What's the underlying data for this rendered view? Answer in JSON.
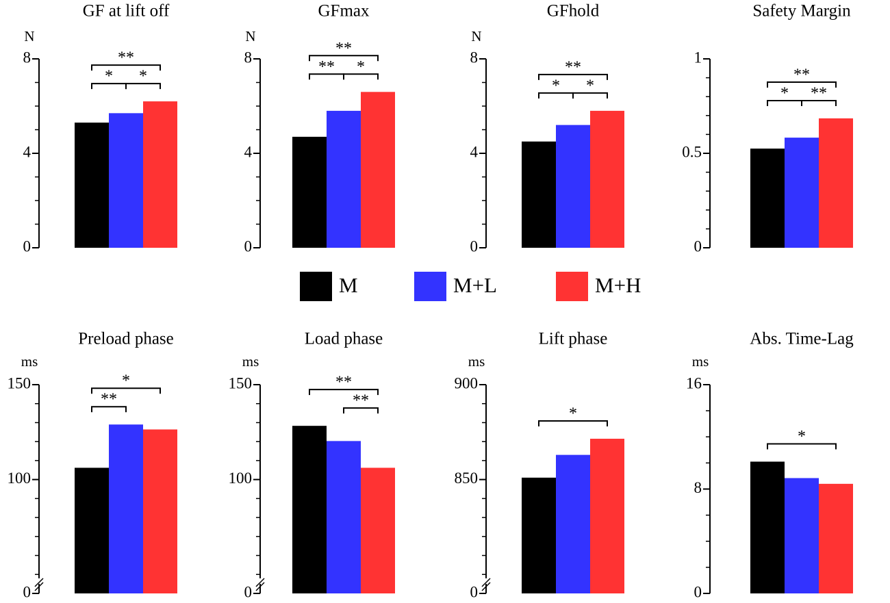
{
  "legend": [
    {
      "name": "M",
      "color": "#000000"
    },
    {
      "name": "M+L",
      "color": "#3333ff"
    },
    {
      "name": "M+H",
      "color": "#ff3333"
    }
  ],
  "chart_data": [
    {
      "type": "bar",
      "title": "GF at lift off",
      "unit": "N",
      "values": [
        5.3,
        5.7,
        6.2
      ],
      "ylim": [
        0,
        8
      ],
      "yticks": [
        0,
        4,
        8
      ],
      "minor_step": 1,
      "axis_break": false,
      "brackets": [
        {
          "from": 0,
          "to": 1,
          "label": "*"
        },
        {
          "from": 1,
          "to": 2,
          "label": "*"
        },
        {
          "from": 0,
          "to": 2,
          "label": "**"
        }
      ]
    },
    {
      "type": "bar",
      "title": "GFmax",
      "unit": "N",
      "values": [
        4.7,
        5.8,
        6.6
      ],
      "ylim": [
        0,
        8
      ],
      "yticks": [
        0,
        4,
        8
      ],
      "minor_step": 1,
      "axis_break": false,
      "brackets": [
        {
          "from": 0,
          "to": 1,
          "label": "**"
        },
        {
          "from": 1,
          "to": 2,
          "label": "*"
        },
        {
          "from": 0,
          "to": 2,
          "label": "**"
        }
      ]
    },
    {
      "type": "bar",
      "title": "GFhold",
      "unit": "N",
      "values": [
        4.5,
        5.2,
        5.8
      ],
      "ylim": [
        0,
        8
      ],
      "yticks": [
        0,
        4,
        8
      ],
      "minor_step": 1,
      "axis_break": false,
      "brackets": [
        {
          "from": 0,
          "to": 1,
          "label": "*"
        },
        {
          "from": 1,
          "to": 2,
          "label": "*"
        },
        {
          "from": 0,
          "to": 2,
          "label": "**"
        }
      ]
    },
    {
      "type": "bar",
      "title": "Safety Margin",
      "values": [
        0.525,
        0.583,
        0.685
      ],
      "ylim": [
        0,
        1
      ],
      "yticks": [
        0,
        0.5,
        1
      ],
      "minor_step": 0.1,
      "axis_break": false,
      "brackets": [
        {
          "from": 0,
          "to": 1,
          "label": "*"
        },
        {
          "from": 1,
          "to": 2,
          "label": "**"
        },
        {
          "from": 0,
          "to": 2,
          "label": "**"
        }
      ]
    },
    {
      "type": "bar",
      "title": "Preload phase",
      "unit": "ms",
      "values": [
        106.2,
        129,
        126.4
      ],
      "ylim": [
        0,
        150
      ],
      "yticks": [
        0,
        100,
        150
      ],
      "minor_step": 10,
      "axis_break": true,
      "brackets": [
        {
          "from": 0,
          "to": 1,
          "label": "**"
        },
        {
          "from": 0,
          "to": 2,
          "label": "*"
        }
      ]
    },
    {
      "type": "bar",
      "title": "Load phase",
      "unit": "ms",
      "values": [
        128.3,
        120.3,
        106.2
      ],
      "ylim": [
        0,
        150
      ],
      "yticks": [
        0,
        100,
        150
      ],
      "minor_step": 10,
      "axis_break": true,
      "brackets": [
        {
          "from": 1,
          "to": 2,
          "label": "**"
        },
        {
          "from": 0,
          "to": 2,
          "label": "**"
        }
      ]
    },
    {
      "type": "bar",
      "title": "Lift phase",
      "unit": "ms",
      "values": [
        851,
        863,
        871.5
      ],
      "ylim": [
        0,
        900
      ],
      "yticks": [
        0,
        850,
        900
      ],
      "minor_step": 10,
      "axis_break": true,
      "brackets": [
        {
          "from": 0,
          "to": 2,
          "label": "*"
        }
      ]
    },
    {
      "type": "bar",
      "title": "Abs. Time-Lag",
      "unit": "ms",
      "values": [
        10.1,
        8.84,
        8.4
      ],
      "ylim": [
        0,
        16
      ],
      "yticks": [
        0,
        8,
        16
      ],
      "minor_step": 2,
      "axis_break": false,
      "brackets": [
        {
          "from": 0,
          "to": 2,
          "label": "*"
        }
      ]
    }
  ]
}
